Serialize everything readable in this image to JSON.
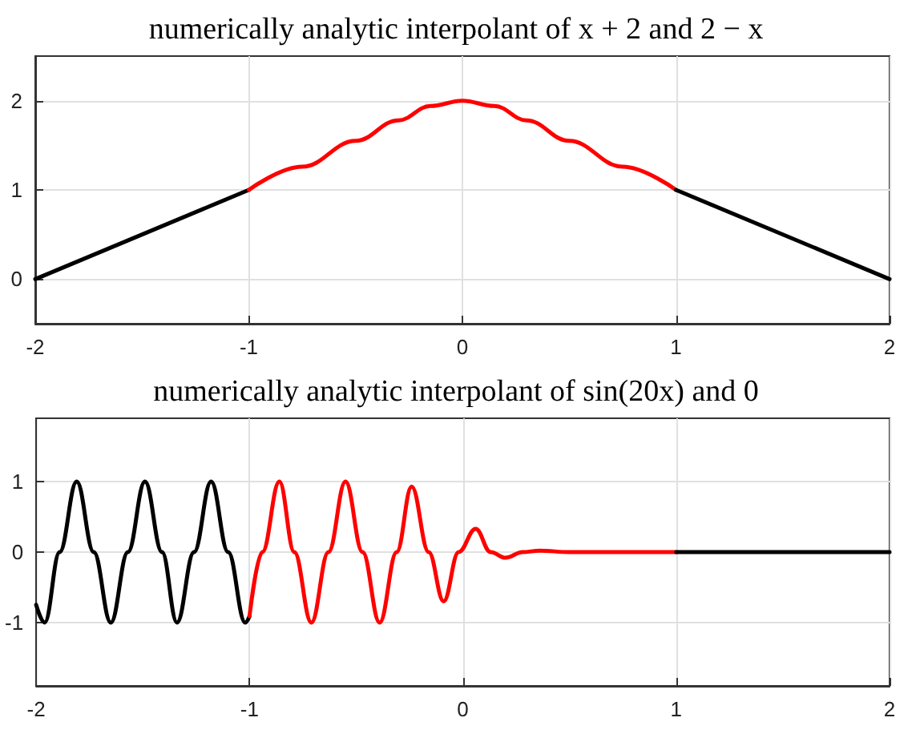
{
  "chart_data": [
    {
      "type": "line",
      "title": "numerically analytic interpolant of x + 2 and 2 − x",
      "xlim": [
        -2,
        2
      ],
      "xticks": [
        -2,
        -1,
        0,
        1,
        2
      ],
      "ylim": [
        -0.5,
        2.5
      ],
      "yticks": [
        0,
        1,
        2
      ],
      "grid": true,
      "line_style": "solid",
      "marker": "none",
      "series": [
        {
          "color": "#000000",
          "x": [
            -2,
            -1
          ],
          "values": [
            0,
            1
          ]
        },
        {
          "color": "#ff0000",
          "x": [
            -1,
            -0.75,
            -0.5,
            -0.3,
            -0.15,
            0,
            0.15,
            0.3,
            0.5,
            0.75,
            1
          ],
          "values": [
            1,
            1.26,
            1.55,
            1.78,
            1.94,
            2,
            1.94,
            1.78,
            1.55,
            1.26,
            1
          ]
        },
        {
          "color": "#000000",
          "x": [
            1,
            2
          ],
          "values": [
            1,
            0
          ]
        }
      ]
    },
    {
      "type": "line",
      "title": "numerically analytic interpolant of sin(20x) and 0",
      "xlim": [
        -2,
        2
      ],
      "xticks": [
        -2,
        -1,
        0,
        1,
        2
      ],
      "ylim": [
        -1.9,
        1.9
      ],
      "yticks": [
        -1,
        0,
        1
      ],
      "grid": true,
      "line_style": "solid",
      "marker": "none",
      "series": [
        {
          "color": "#000000",
          "x": [
            -2,
            -1.96,
            -1.89,
            -1.81,
            -1.73,
            -1.65,
            -1.57,
            -1.49,
            -1.41,
            -1.34,
            -1.26,
            -1.18,
            -1.1,
            -1.02,
            -1
          ],
          "values": [
            -0.75,
            -1,
            0,
            1,
            0,
            -1,
            0,
            1,
            0,
            -1,
            0,
            1,
            0,
            -1,
            -0.91
          ]
        },
        {
          "color": "#ff0000",
          "x": [
            -1,
            -0.94,
            -0.86,
            -0.79,
            -0.71,
            -0.63,
            -0.55,
            -0.47,
            -0.39,
            -0.31,
            -0.24,
            -0.16,
            -0.09,
            -0.02,
            0.06,
            0.13,
            0.2,
            0.28,
            0.36,
            0.5,
            1
          ],
          "values": [
            -0.91,
            0,
            1,
            0,
            -1,
            0,
            1,
            0,
            -1,
            0,
            0.93,
            0,
            -0.7,
            0,
            0.33,
            0,
            -0.08,
            0,
            0.02,
            0,
            0
          ]
        },
        {
          "color": "#000000",
          "x": [
            1,
            2
          ],
          "values": [
            0,
            0
          ]
        }
      ]
    }
  ]
}
